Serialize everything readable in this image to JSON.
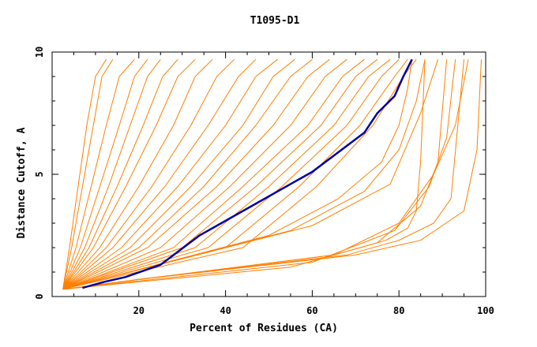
{
  "chart_data": {
    "type": "line",
    "title": "T1095-D1",
    "xlabel": "Percent of Residues (CA)",
    "ylabel": "Distance Cutoff, A",
    "xlim": [
      0,
      100
    ],
    "ylim": [
      0,
      10
    ],
    "x_ticks": [
      {
        "v": 20,
        "label": "20"
      },
      {
        "v": 40,
        "label": "40"
      },
      {
        "v": 60,
        "label": "60"
      },
      {
        "v": 80,
        "label": "80"
      },
      {
        "v": 100,
        "label": "100"
      }
    ],
    "y_ticks": [
      {
        "v": 0,
        "label": "0"
      },
      {
        "v": 5,
        "label": "5"
      },
      {
        "v": 10,
        "label": "10"
      }
    ],
    "grid": false,
    "legend": "none",
    "colors": {
      "models": "#ff7f00",
      "highlight": "#0000a0"
    },
    "series": [
      {
        "x": [
          2.5,
          4,
          6,
          8,
          10,
          12.5
        ],
        "y": [
          0.3,
          2,
          4.5,
          7,
          9,
          9.7
        ]
      },
      {
        "x": [
          2.5,
          4.5,
          7,
          9.5,
          11.5,
          14
        ],
        "y": [
          0.3,
          2,
          4.5,
          7,
          9,
          9.7
        ]
      },
      {
        "x": [
          2.5,
          5.5,
          9,
          12.5,
          15.5,
          19
        ],
        "y": [
          0.3,
          2,
          4.5,
          7,
          9,
          9.7
        ]
      },
      {
        "x": [
          2.5,
          6.5,
          11,
          15.5,
          19,
          22
        ],
        "y": [
          0.3,
          2,
          4.5,
          7,
          9,
          9.7
        ]
      },
      {
        "x": [
          2.5,
          7.5,
          13,
          18,
          22,
          25
        ],
        "y": [
          0.3,
          2,
          4.5,
          7,
          9,
          9.7
        ]
      },
      {
        "x": [
          2.5,
          8.5,
          15,
          21,
          25.5,
          29
        ],
        "y": [
          0.3,
          2,
          4.5,
          7,
          9,
          9.7
        ]
      },
      {
        "x": [
          2.5,
          9.5,
          17,
          24,
          29,
          33
        ],
        "y": [
          0.3,
          2,
          4.5,
          7,
          9,
          9.7
        ]
      },
      {
        "x": [
          2.5,
          11,
          20,
          28,
          33,
          37
        ],
        "y": [
          0.3,
          2,
          4.5,
          7,
          9,
          9.7
        ]
      },
      {
        "x": [
          2.5,
          12.5,
          23,
          32,
          38,
          42
        ],
        "y": [
          0.3,
          2,
          4.5,
          7,
          9,
          9.7
        ]
      },
      {
        "x": [
          2.5,
          14,
          26,
          36,
          43,
          47
        ],
        "y": [
          0.3,
          2,
          4.5,
          7,
          9,
          9.7
        ]
      },
      {
        "x": [
          2.5,
          16,
          29,
          40,
          47,
          52
        ],
        "y": [
          0.3,
          2,
          4.5,
          7,
          9,
          9.7
        ]
      },
      {
        "x": [
          2.5,
          18,
          32,
          44,
          51,
          56
        ],
        "y": [
          0.3,
          2,
          4.5,
          7,
          9,
          9.7
        ]
      },
      {
        "x": [
          2.5,
          20,
          35,
          47,
          55,
          60
        ],
        "y": [
          0.3,
          2,
          4.5,
          7,
          9,
          9.7
        ]
      },
      {
        "x": [
          2.5,
          22,
          38,
          51,
          59,
          64
        ],
        "y": [
          0.3,
          2,
          4.5,
          7,
          9,
          9.7
        ]
      },
      {
        "x": [
          2.5,
          25,
          41,
          55,
          63,
          68
        ],
        "y": [
          0.3,
          2,
          4.5,
          7,
          9,
          9.7
        ]
      },
      {
        "x": [
          2.5,
          28,
          44,
          59,
          67,
          72
        ],
        "y": [
          0.3,
          2,
          4.5,
          7,
          9,
          9.7
        ]
      },
      {
        "x": [
          2.5,
          30,
          47,
          62,
          70,
          75
        ],
        "y": [
          0.3,
          2,
          4.5,
          7,
          9,
          9.7
        ]
      },
      {
        "x": [
          2.5,
          33,
          50,
          65,
          73,
          78
        ],
        "y": [
          0.3,
          2,
          4.5,
          7,
          9,
          9.7
        ]
      },
      {
        "x": [
          2.5,
          36,
          53,
          68,
          76,
          80
        ],
        "y": [
          0.3,
          2,
          4.5,
          7,
          9,
          9.7
        ]
      },
      {
        "x": [
          2.5,
          40,
          57,
          71,
          79,
          82
        ],
        "y": [
          0.3,
          2,
          4.5,
          7,
          9,
          9.7
        ]
      },
      {
        "x": [
          2.5,
          44,
          61,
          74,
          81,
          84
        ],
        "y": [
          0.3,
          2,
          4.5,
          7,
          9,
          9.7
        ]
      },
      {
        "x": [
          2.5,
          50,
          66,
          76,
          80,
          82,
          83
        ],
        "y": [
          0.3,
          2.5,
          4.0,
          5.5,
          7.0,
          8.5,
          9.7
        ]
      },
      {
        "x": [
          2.5,
          55,
          72,
          80,
          84,
          86
        ],
        "y": [
          0.3,
          2.7,
          4.3,
          6.0,
          8.0,
          9.7
        ]
      },
      {
        "x": [
          2.5,
          60,
          78,
          85,
          89
        ],
        "y": [
          0.3,
          2.9,
          4.6,
          7.5,
          9.7
        ]
      },
      {
        "x": [
          2.5,
          55,
          75,
          85,
          89,
          91
        ],
        "y": [
          0.3,
          1.2,
          2.2,
          3.7,
          5.5,
          9.7
        ]
      },
      {
        "x": [
          2.5,
          60,
          79,
          87,
          91,
          93
        ],
        "y": [
          0.3,
          1.4,
          2.7,
          4.5,
          6.5,
          9.7
        ]
      },
      {
        "x": [
          2.5,
          65,
          80,
          88,
          93,
          96
        ],
        "y": [
          0.3,
          1.7,
          3.0,
          5.0,
          7.0,
          9.7
        ]
      },
      {
        "x": [
          3,
          20,
          65,
          77,
          82,
          84,
          85,
          86
        ],
        "y": [
          0.3,
          0.7,
          1.7,
          2.3,
          2.8,
          3.5,
          5.5,
          9.7
        ]
      },
      {
        "x": [
          3,
          20,
          68,
          80,
          88,
          92,
          95
        ],
        "y": [
          0.3,
          0.7,
          1.7,
          2.3,
          3.0,
          4.0,
          9.7
        ]
      },
      {
        "x": [
          3,
          20,
          70,
          85,
          95,
          98,
          99
        ],
        "y": [
          0.3,
          0.7,
          1.7,
          2.3,
          3.5,
          6.0,
          9.7
        ]
      }
    ],
    "highlight": {
      "x": [
        7,
        12,
        17,
        25,
        34,
        43,
        52,
        60,
        66,
        72,
        75,
        79,
        81,
        83
      ],
      "y": [
        0.35,
        0.6,
        0.8,
        1.3,
        2.5,
        3.4,
        4.3,
        5.1,
        5.9,
        6.7,
        7.5,
        8.2,
        9.0,
        9.7
      ]
    }
  }
}
